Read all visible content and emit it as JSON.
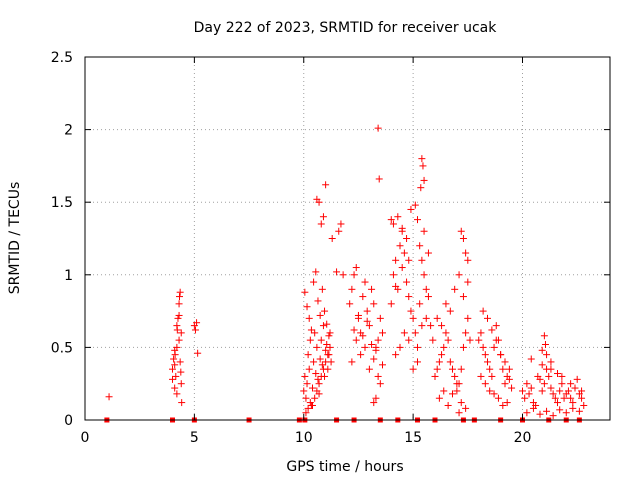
{
  "chart_data": {
    "type": "scatter",
    "title": "Day 222 of 2023, SRMTID for receiver ucak",
    "xlabel": "GPS time / hours",
    "ylabel": "SRMTID / TECUs",
    "xlim": [
      0,
      24
    ],
    "ylim": [
      0,
      2.5
    ],
    "x_ticks": [
      0,
      5,
      10,
      15,
      20
    ],
    "y_ticks": [
      0,
      0.5,
      1,
      1.5,
      2,
      2.5
    ],
    "x_tick_labels": [
      "0",
      "5",
      "10",
      "15",
      "20"
    ],
    "y_tick_labels": [
      "0",
      "0.5",
      "1",
      "1.5",
      "2",
      "2.5"
    ],
    "grid": true,
    "marker": "plus",
    "color": "#ff0000",
    "series": [
      {
        "name": "SRMTID",
        "x": [
          1.1,
          4.0,
          4.05,
          4.1,
          4.12,
          4.15,
          4.2,
          4.22,
          4.25,
          4.3,
          4.32,
          4.35,
          4.4,
          4.0,
          4.1,
          4.2,
          4.3,
          4.35,
          4.38,
          4.4,
          4.42,
          4.3,
          4.2,
          4.1,
          5.0,
          5.05,
          5.1,
          5.15,
          10.0,
          10.05,
          10.1,
          10.15,
          10.2,
          10.25,
          10.3,
          10.35,
          10.4,
          10.45,
          10.5,
          10.55,
          10.6,
          10.65,
          10.7,
          10.75,
          10.8,
          10.85,
          10.9,
          10.95,
          11.0,
          11.05,
          11.1,
          11.15,
          11.2,
          11.25,
          10.1,
          10.2,
          10.3,
          10.4,
          10.5,
          10.6,
          10.7,
          10.8,
          10.9,
          11.0,
          11.1,
          11.2,
          10.05,
          10.15,
          10.25,
          10.35,
          10.45,
          10.55,
          10.65,
          10.75,
          10.85,
          10.95,
          11.05,
          11.15,
          10.6,
          10.7,
          10.8,
          10.9,
          11.0,
          11.3,
          11.5,
          11.6,
          11.7,
          11.8,
          12.1,
          12.2,
          12.3,
          12.4,
          12.5,
          12.6,
          12.7,
          12.8,
          12.9,
          13.0,
          13.1,
          13.2,
          13.3,
          13.4,
          13.5,
          13.6,
          12.2,
          12.4,
          12.6,
          12.8,
          13.0,
          13.2,
          13.4,
          13.6,
          12.3,
          12.5,
          12.7,
          12.9,
          13.1,
          13.3,
          13.5,
          13.4,
          13.45,
          13.3,
          13.2,
          14.0,
          14.1,
          14.2,
          14.3,
          14.4,
          14.5,
          14.6,
          14.7,
          14.8,
          14.9,
          15.0,
          15.1,
          15.2,
          15.3,
          15.4,
          15.5,
          15.6,
          15.7,
          15.8,
          15.9,
          14.1,
          14.3,
          14.5,
          14.7,
          14.9,
          15.1,
          15.3,
          15.5,
          15.7,
          14.2,
          14.4,
          14.6,
          14.8,
          15.0,
          15.2,
          15.4,
          15.6,
          15.4,
          15.45,
          15.5,
          15.35,
          15.2,
          14.8,
          14.5,
          14.0,
          14.2,
          16.0,
          16.1,
          16.2,
          16.3,
          16.4,
          16.5,
          16.6,
          16.7,
          16.8,
          16.9,
          17.0,
          17.1,
          17.2,
          17.3,
          17.4,
          17.5,
          17.6,
          16.1,
          16.3,
          16.5,
          16.7,
          16.9,
          17.1,
          17.3,
          17.5,
          16.2,
          16.4,
          16.6,
          16.8,
          17.0,
          17.2,
          17.4,
          17.2,
          17.3,
          17.4,
          17.5,
          17.1,
          18.0,
          18.1,
          18.2,
          18.3,
          18.4,
          18.5,
          18.6,
          18.7,
          18.8,
          18.9,
          19.0,
          19.1,
          19.2,
          19.3,
          19.4,
          19.5,
          18.1,
          18.3,
          18.5,
          18.7,
          18.9,
          19.1,
          19.3,
          18.2,
          18.4,
          18.6,
          18.8,
          19.0,
          19.2,
          19.4,
          20.0,
          20.1,
          20.2,
          20.3,
          20.4,
          20.5,
          20.6,
          20.7,
          20.8,
          20.9,
          21.0,
          21.1,
          21.2,
          21.3,
          21.4,
          21.5,
          21.6,
          21.7,
          21.8,
          21.9,
          22.0,
          22.1,
          22.2,
          22.3,
          22.4,
          22.5,
          22.6,
          22.7,
          22.8,
          20.2,
          20.5,
          20.8,
          21.1,
          21.4,
          21.7,
          22.0,
          22.3,
          22.6,
          20.4,
          20.9,
          21.3,
          21.8,
          22.2,
          22.7,
          21.0,
          21.05,
          20.9,
          21.1,
          21.3,
          21.6
        ],
        "y": [
          0.16,
          0.35,
          0.42,
          0.38,
          0.45,
          0.3,
          0.5,
          0.62,
          0.7,
          0.8,
          0.85,
          0.88,
          0.6,
          0.28,
          0.22,
          0.18,
          0.55,
          0.4,
          0.33,
          0.25,
          0.12,
          0.72,
          0.65,
          0.48,
          0.65,
          0.62,
          0.67,
          0.46,
          0.2,
          0.3,
          0.15,
          0.25,
          0.45,
          0.35,
          0.55,
          0.1,
          0.22,
          0.4,
          0.6,
          0.32,
          0.5,
          0.28,
          0.18,
          0.42,
          0.55,
          0.38,
          0.65,
          0.3,
          0.48,
          0.52,
          0.35,
          0.45,
          0.6,
          0.4,
          0.05,
          0.08,
          0.12,
          0.1,
          0.15,
          0.2,
          0.25,
          0.3,
          0.35,
          0.4,
          0.45,
          0.5,
          0.88,
          0.78,
          0.7,
          0.62,
          0.95,
          1.02,
          0.82,
          0.72,
          0.9,
          0.75,
          0.66,
          0.58,
          1.52,
          1.5,
          1.35,
          1.4,
          1.62,
          1.25,
          1.02,
          1.3,
          1.35,
          1.0,
          0.8,
          0.9,
          1.0,
          1.05,
          0.7,
          0.6,
          0.85,
          0.95,
          0.75,
          0.65,
          0.9,
          0.8,
          0.5,
          0.55,
          0.7,
          0.6,
          0.4,
          0.55,
          0.45,
          0.5,
          0.35,
          0.42,
          0.3,
          0.38,
          0.62,
          0.72,
          0.58,
          0.68,
          0.52,
          0.48,
          0.25,
          2.01,
          1.66,
          0.15,
          0.12,
          0.8,
          1.0,
          1.1,
          0.9,
          1.2,
          1.05,
          1.15,
          0.95,
          0.85,
          0.75,
          0.7,
          0.6,
          0.5,
          0.8,
          1.1,
          1.0,
          0.9,
          0.85,
          0.65,
          0.55,
          1.35,
          1.4,
          1.3,
          1.25,
          1.45,
          1.48,
          1.2,
          1.3,
          1.15,
          0.45,
          0.5,
          0.6,
          0.55,
          0.35,
          0.4,
          0.65,
          0.7,
          1.8,
          1.75,
          1.65,
          1.6,
          1.38,
          1.1,
          1.32,
          1.38,
          0.92,
          0.3,
          0.35,
          0.4,
          0.45,
          0.5,
          0.6,
          0.55,
          0.4,
          0.35,
          0.3,
          0.2,
          0.25,
          0.35,
          0.5,
          0.6,
          0.7,
          0.55,
          0.7,
          0.65,
          0.8,
          0.75,
          0.9,
          1.0,
          0.85,
          0.95,
          0.15,
          0.2,
          0.1,
          0.18,
          0.25,
          0.12,
          0.08,
          1.3,
          1.25,
          1.15,
          1.1,
          0.05,
          0.55,
          0.6,
          0.5,
          0.45,
          0.4,
          0.35,
          0.3,
          0.5,
          0.65,
          0.55,
          0.45,
          0.35,
          0.25,
          0.3,
          0.28,
          0.22,
          0.3,
          0.25,
          0.2,
          0.18,
          0.15,
          0.1,
          0.12,
          0.75,
          0.7,
          0.62,
          0.55,
          0.45,
          0.4,
          0.35,
          0.2,
          0.15,
          0.25,
          0.18,
          0.22,
          0.12,
          0.1,
          0.3,
          0.28,
          0.2,
          0.25,
          0.35,
          0.3,
          0.22,
          0.18,
          0.15,
          0.12,
          0.2,
          0.25,
          0.15,
          0.18,
          0.2,
          0.15,
          0.12,
          0.22,
          0.28,
          0.18,
          0.15,
          0.1,
          0.05,
          0.08,
          0.04,
          0.06,
          0.03,
          0.07,
          0.05,
          0.08,
          0.06,
          0.42,
          0.38,
          0.35,
          0.3,
          0.25,
          0.2,
          0.58,
          0.52,
          0.48,
          0.45,
          0.4,
          0.32
        ]
      },
      {
        "name": "zero markers",
        "x": [
          1.0,
          4.0,
          5.0,
          7.5,
          9.8,
          10.05,
          11.5,
          12.3,
          13.5,
          14.3,
          15.2,
          16.0,
          17.3,
          17.8,
          19.0,
          20.0,
          21.2,
          22.0,
          22.6
        ],
        "y": [
          0,
          0,
          0,
          0,
          0,
          0,
          0,
          0,
          0,
          0,
          0,
          0,
          0,
          0,
          0,
          0,
          0,
          0,
          0
        ]
      }
    ]
  }
}
